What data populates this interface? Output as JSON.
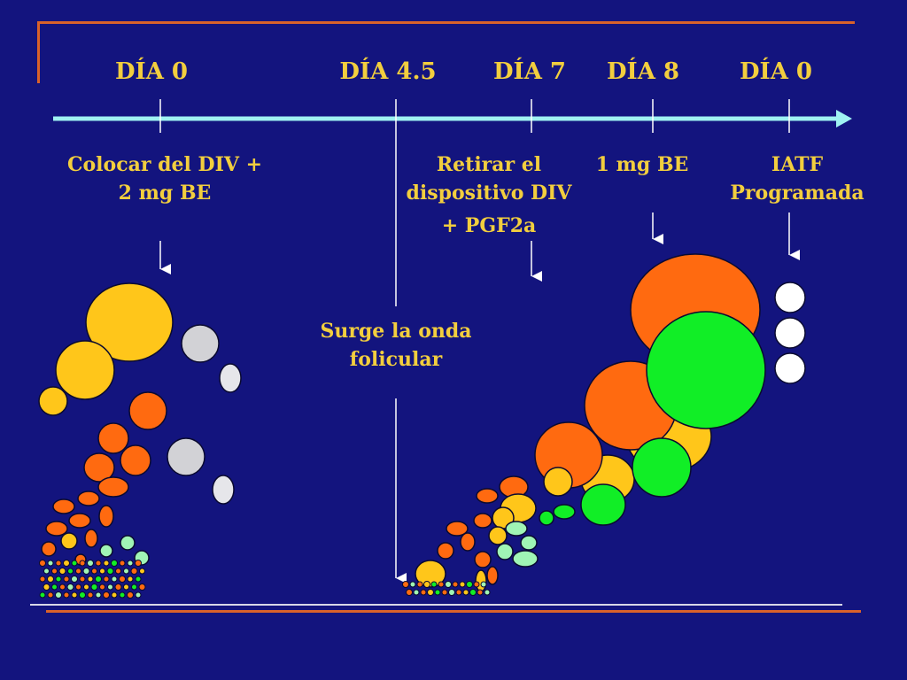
{
  "timeline": {
    "days": [
      "DÍA 0",
      "DÍA 4.5",
      "DÍA 7",
      "DÍA 8",
      "DÍA 0"
    ]
  },
  "annotations": {
    "day0": {
      "line1": "Colocar del DIV +",
      "line2": "2 mg BE"
    },
    "day7": {
      "line1": "Retirar el",
      "line2": "dispositivo DIV",
      "line3": "+ PGF2a"
    },
    "day8": {
      "line1": "1 mg BE"
    },
    "iatf": {
      "line1": "IATF",
      "line2": "Programada"
    },
    "wave": {
      "line1": "Surge la onda",
      "line2": "folicular"
    }
  },
  "colors": {
    "background": "#13147e",
    "text": "#f2ce3e",
    "frame": "#d9622a",
    "timeline": "#9ff2f2",
    "follicle_yellow": "#ffc61a",
    "follicle_orange": "#ff6a10",
    "follicle_green": "#11ee26",
    "follicle_gray": "#d2d2d6",
    "follicle_white": "#ffffff",
    "follicle_mint": "#9ff5b5"
  }
}
